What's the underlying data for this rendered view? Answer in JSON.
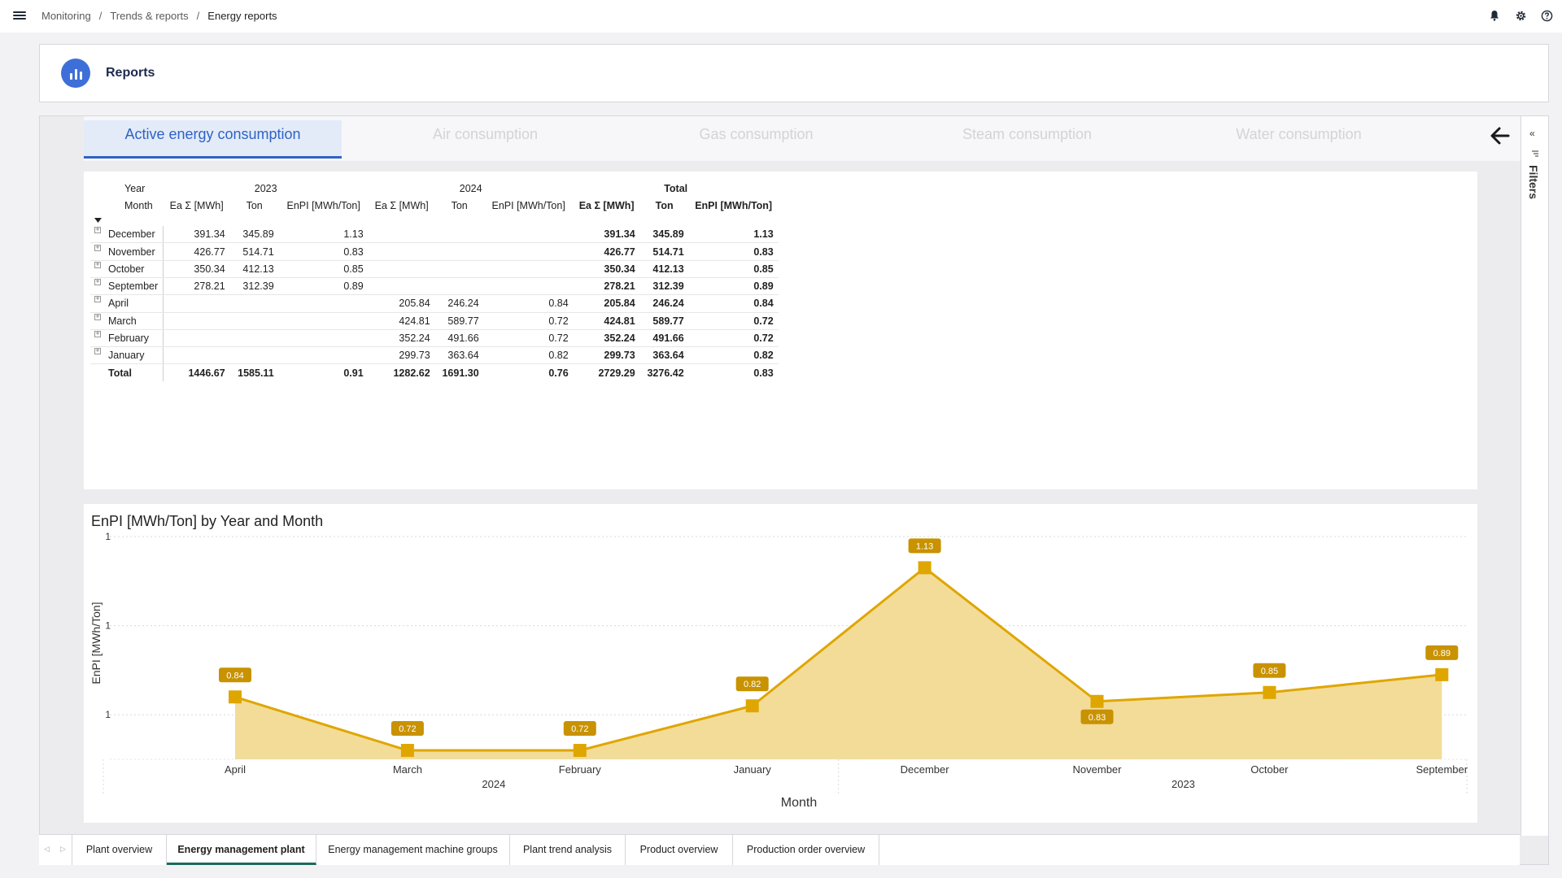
{
  "breadcrumb": [
    "Monitoring",
    "Trends & reports",
    "Energy reports"
  ],
  "top_icons": [
    "bell-icon",
    "gear-icon",
    "help-icon"
  ],
  "reports": {
    "title": "Reports"
  },
  "tabs": [
    "Active energy consumption",
    "Air consumption",
    "Gas consumption",
    "Steam consumption",
    "Water consumption"
  ],
  "filters": {
    "label": "Filters"
  },
  "table": {
    "year_label": "Year",
    "month_label": "Month",
    "year_groups": [
      "2023",
      "2024",
      "Total"
    ],
    "measure_headers": [
      "Ea Σ [MWh]",
      "Ton",
      "EnPI [MWh/Ton]"
    ],
    "rows": [
      {
        "month": "December",
        "y2023": [
          "391.34",
          "345.89",
          "1.13"
        ],
        "y2024": [
          "",
          "",
          ""
        ],
        "total": [
          "391.34",
          "345.89",
          "1.13"
        ]
      },
      {
        "month": "November",
        "y2023": [
          "426.77",
          "514.71",
          "0.83"
        ],
        "y2024": [
          "",
          "",
          ""
        ],
        "total": [
          "426.77",
          "514.71",
          "0.83"
        ]
      },
      {
        "month": "October",
        "y2023": [
          "350.34",
          "412.13",
          "0.85"
        ],
        "y2024": [
          "",
          "",
          ""
        ],
        "total": [
          "350.34",
          "412.13",
          "0.85"
        ]
      },
      {
        "month": "September",
        "y2023": [
          "278.21",
          "312.39",
          "0.89"
        ],
        "y2024": [
          "",
          "",
          ""
        ],
        "total": [
          "278.21",
          "312.39",
          "0.89"
        ]
      },
      {
        "month": "April",
        "y2023": [
          "",
          "",
          ""
        ],
        "y2024": [
          "205.84",
          "246.24",
          "0.84"
        ],
        "total": [
          "205.84",
          "246.24",
          "0.84"
        ]
      },
      {
        "month": "March",
        "y2023": [
          "",
          "",
          ""
        ],
        "y2024": [
          "424.81",
          "589.77",
          "0.72"
        ],
        "total": [
          "424.81",
          "589.77",
          "0.72"
        ]
      },
      {
        "month": "February",
        "y2023": [
          "",
          "",
          ""
        ],
        "y2024": [
          "352.24",
          "491.66",
          "0.72"
        ],
        "total": [
          "352.24",
          "491.66",
          "0.72"
        ]
      },
      {
        "month": "January",
        "y2023": [
          "",
          "",
          ""
        ],
        "y2024": [
          "299.73",
          "363.64",
          "0.82"
        ],
        "total": [
          "299.73",
          "363.64",
          "0.82"
        ]
      }
    ],
    "total_row": {
      "label": "Total",
      "y2023": [
        "1446.67",
        "1585.11",
        "0.91"
      ],
      "y2024": [
        "1282.62",
        "1691.30",
        "0.76"
      ],
      "total": [
        "2729.29",
        "3276.42",
        "0.83"
      ]
    }
  },
  "chart_data": {
    "type": "area",
    "title": "EnPI [MWh/Ton] by Year and Month",
    "xlabel": "Month",
    "ylabel": "EnPI [MWh/Ton]",
    "categories": [
      "April",
      "March",
      "February",
      "January",
      "December",
      "November",
      "October",
      "September"
    ],
    "groups": [
      {
        "name": "2024",
        "categories": [
          "April",
          "March",
          "February",
          "January"
        ]
      },
      {
        "name": "2023",
        "categories": [
          "December",
          "November",
          "October",
          "September"
        ]
      }
    ],
    "values": [
      0.84,
      0.72,
      0.72,
      0.82,
      1.13,
      0.83,
      0.85,
      0.89
    ],
    "data_labels": [
      "0.84",
      "0.72",
      "0.72",
      "0.82",
      "1.13",
      "0.83",
      "0.85",
      "0.89"
    ],
    "y_tick_labels": [
      "1",
      "1",
      "1"
    ],
    "y_ticks": [
      1.2,
      1.0,
      0.8
    ],
    "ylim": [
      0.7,
      1.2
    ],
    "grid": true,
    "color": "#dfa600",
    "fill_color": "#f2dc98"
  },
  "bottom_tabs": [
    "Plant overview",
    "Energy management plant",
    "Energy management machine groups",
    "Plant trend analysis",
    "Product overview",
    "Production order overview"
  ],
  "active_bottom_tab": "Energy management plant"
}
